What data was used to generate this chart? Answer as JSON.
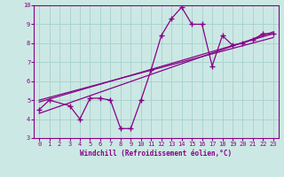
{
  "xlabel": "Windchill (Refroidissement éolien,°C)",
  "background_color": "#cce8e4",
  "grid_color": "#aad4cf",
  "line_color": "#880088",
  "xlim": [
    -0.5,
    23.5
  ],
  "ylim": [
    3,
    10
  ],
  "xticks": [
    0,
    1,
    2,
    3,
    4,
    5,
    6,
    7,
    8,
    9,
    10,
    11,
    12,
    13,
    14,
    15,
    16,
    17,
    18,
    19,
    20,
    21,
    22,
    23
  ],
  "yticks": [
    3,
    4,
    5,
    6,
    7,
    8,
    9,
    10
  ],
  "data_x": [
    0,
    1,
    3,
    4,
    5,
    6,
    7,
    8,
    9,
    10,
    11,
    12,
    13,
    14,
    15,
    16,
    17,
    18,
    19,
    20,
    21,
    22,
    23
  ],
  "data_y": [
    4.5,
    5.0,
    4.7,
    4.0,
    5.1,
    5.1,
    5.0,
    3.5,
    3.5,
    5.0,
    6.6,
    8.4,
    9.3,
    9.9,
    9.0,
    9.0,
    6.8,
    8.4,
    7.9,
    8.0,
    8.2,
    8.5,
    8.5
  ],
  "trend1_x": [
    0,
    23
  ],
  "trend1_y": [
    4.3,
    8.6
  ],
  "trend2_x": [
    0,
    23
  ],
  "trend2_y": [
    4.9,
    8.5
  ],
  "trend3_x": [
    0,
    23
  ],
  "trend3_y": [
    5.0,
    8.3
  ]
}
